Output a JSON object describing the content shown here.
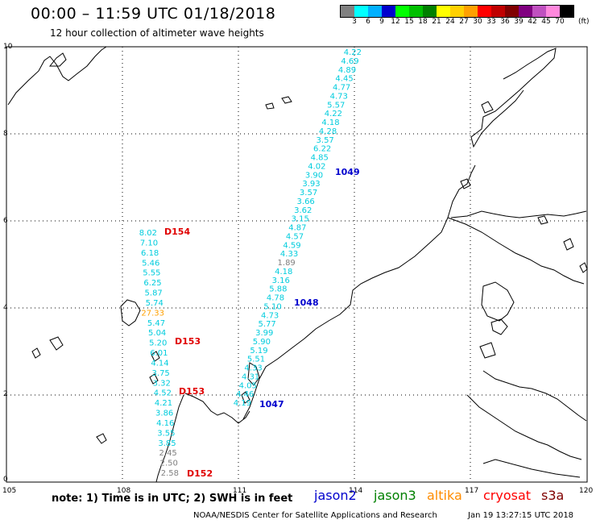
{
  "header": {
    "title": "00:00 – 11:59 UTC 01/18/2018",
    "subtitle": "12 hour collection of altimeter wave heights"
  },
  "colorbar": {
    "colors": [
      "#808080",
      "#00ffff",
      "#00b0ff",
      "#0000cd",
      "#00ff00",
      "#00c000",
      "#008000",
      "#ffff00",
      "#ffd000",
      "#ffa000",
      "#ff0000",
      "#c00000",
      "#800000",
      "#800080",
      "#c050c0",
      "#ff88dd",
      "#000000"
    ],
    "labels": [
      "3",
      "6",
      "9",
      "12",
      "15",
      "18",
      "21",
      "24",
      "27",
      "30",
      "33",
      "36",
      "39",
      "42",
      "45",
      "70"
    ],
    "unit": "(ft)"
  },
  "axes": {
    "x_ticks": [
      "105",
      "108",
      "111",
      "114",
      "117",
      "120"
    ],
    "y_ticks": [
      "0",
      "2",
      "4",
      "6",
      "8",
      "10"
    ]
  },
  "tracks": {
    "jason2_a": [
      "4.22",
      "4.69",
      "4.89",
      "4.45",
      "4.77",
      "4.73",
      "5.57",
      "4.22",
      "4.18",
      "4.28",
      "3.57",
      "6.22",
      "4.85",
      "4.02",
      "3.90",
      "3.93",
      "3.57",
      "3.66",
      "3.62",
      "3.15",
      "4.87",
      "4.57",
      "4.59",
      "4.33",
      "1.89",
      "4.18",
      "3.16",
      "5.88",
      "4.78",
      "5.10",
      "4.73",
      "5.77",
      "3.99",
      "5.90",
      "5.19",
      "5.51",
      "4.33",
      "4.31",
      "4.05",
      "4.46",
      "4.19"
    ],
    "s3a_a": [
      "8.02",
      "7.10",
      "6.18",
      "5.46",
      "5.55",
      "6.25",
      "5.87",
      "5.74",
      "27.33",
      "5.47",
      "5.04",
      "5.20",
      "6.01",
      "4.14",
      "3.75",
      "3.32",
      "4.52",
      "4.21",
      "3.86",
      "4.16",
      "3.55",
      "3.85",
      "2.45",
      "2.50",
      "2.58"
    ]
  },
  "pass_labels": [
    {
      "text": "1049",
      "sat": "jason2"
    },
    {
      "text": "1048",
      "sat": "jason2"
    },
    {
      "text": "1047",
      "sat": "jason2"
    },
    {
      "text": "D154",
      "sat": "s3a"
    },
    {
      "text": "D153",
      "sat": "s3a"
    },
    {
      "text": "D153",
      "sat": "s3a"
    },
    {
      "text": "D152",
      "sat": "s3a"
    }
  ],
  "legend": {
    "note": "note: 1) Time is in UTC; 2) SWH is in feet",
    "items": [
      {
        "label": "jason2",
        "color": "#0000cd"
      },
      {
        "label": "jason3",
        "color": "#008000"
      },
      {
        "label": "altika",
        "color": "#ff8c00"
      },
      {
        "label": "cryosat",
        "color": "#ff0000"
      },
      {
        "label": "s3a",
        "color": "#800000"
      }
    ]
  },
  "footer": {
    "credit": "NOAA/NESDIS Center for Satellite Applications and Research",
    "timestamp": "Jan 19 13:27:15 UTC 2018"
  }
}
